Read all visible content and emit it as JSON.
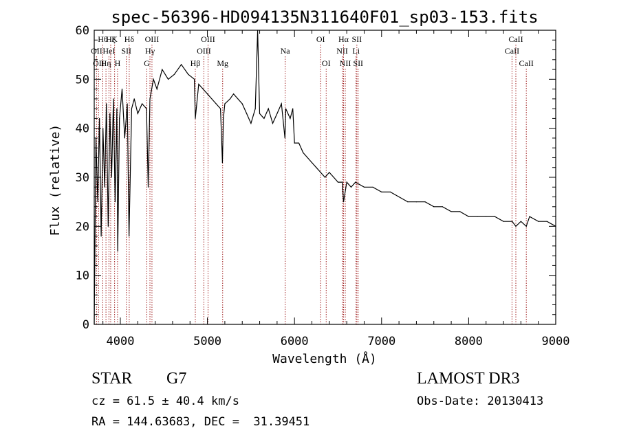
{
  "chart_data": {
    "type": "line",
    "title": "spec-56396-HD094135N311640F01_sp03-153.fits",
    "xlabel": "Wavelength (Å)",
    "ylabel": "Flux (relative)",
    "xlim": [
      3700,
      9000
    ],
    "ylim": [
      0,
      60
    ],
    "x_ticks": [
      4000,
      5000,
      6000,
      7000,
      8000,
      9000
    ],
    "x_tick_labels": [
      "4000",
      "5000",
      "6000",
      "7000",
      "8000",
      "9000"
    ],
    "y_ticks": [
      0,
      10,
      20,
      30,
      40,
      50,
      60
    ],
    "y_tick_labels": [
      "0",
      "10",
      "20",
      "30",
      "40",
      "50",
      "60"
    ],
    "series": [
      {
        "name": "flux",
        "color": "#000000",
        "x": [
          3700,
          3720,
          3740,
          3760,
          3780,
          3800,
          3820,
          3840,
          3860,
          3880,
          3900,
          3920,
          3940,
          3960,
          3970,
          3990,
          4020,
          4050,
          4080,
          4100,
          4130,
          4160,
          4200,
          4250,
          4300,
          4320,
          4340,
          4380,
          4420,
          4480,
          4550,
          4620,
          4700,
          4780,
          4850,
          4861,
          4900,
          4950,
          5000,
          5050,
          5100,
          5150,
          5172,
          5183,
          5200,
          5260,
          5300,
          5350,
          5400,
          5450,
          5500,
          5550,
          5577,
          5600,
          5650,
          5700,
          5750,
          5800,
          5850,
          5890,
          5900,
          5950,
          5980,
          6000,
          6050,
          6100,
          6150,
          6200,
          6250,
          6300,
          6350,
          6400,
          6450,
          6500,
          6550,
          6563,
          6600,
          6650,
          6700,
          6800,
          6900,
          7000,
          7100,
          7200,
          7300,
          7400,
          7500,
          7600,
          7700,
          7800,
          7900,
          8000,
          8100,
          8200,
          8300,
          8400,
          8500,
          8542,
          8600,
          8662,
          8700,
          8800,
          8900,
          9000
        ],
        "y": [
          0,
          38,
          25,
          42,
          18,
          40,
          28,
          45,
          20,
          43,
          30,
          46,
          25,
          44,
          15,
          42,
          48,
          38,
          45,
          18,
          44,
          46,
          43,
          45,
          44,
          28,
          46,
          50,
          48,
          52,
          50,
          51,
          53,
          51,
          50,
          42,
          49,
          48,
          47,
          46,
          45,
          44,
          33,
          42,
          45,
          46,
          47,
          46,
          45,
          43,
          41,
          44,
          60,
          43,
          42,
          44,
          41,
          43,
          45,
          38,
          44,
          42,
          44,
          37,
          37,
          35,
          34,
          33,
          32,
          31,
          30,
          31,
          30,
          29,
          29,
          25,
          29,
          28,
          29,
          28,
          28,
          27,
          27,
          26,
          25,
          25,
          25,
          24,
          24,
          23,
          23,
          22,
          22,
          22,
          22,
          21,
          21,
          20,
          21,
          20,
          22,
          21,
          21,
          20
        ]
      }
    ],
    "lines": [
      {
        "wl": 3727,
        "label": "OII",
        "row": 2
      },
      {
        "wl": 3750,
        "label": "OII",
        "row": 3
      },
      {
        "wl": 3798,
        "label": "Hθ",
        "row": 1
      },
      {
        "wl": 3835,
        "label": "Hη",
        "row": 3
      },
      {
        "wl": 3869,
        "label": "HeI",
        "row": 2
      },
      {
        "wl": 3889,
        "label": "Hζ",
        "row": 1
      },
      {
        "wl": 3934,
        "label": "K",
        "row": 1
      },
      {
        "wl": 3968,
        "label": "H",
        "row": 3
      },
      {
        "wl": 4069,
        "label": "SII",
        "row": 2
      },
      {
        "wl": 4102,
        "label": "Hδ",
        "row": 1
      },
      {
        "wl": 4304,
        "label": "G",
        "row": 3
      },
      {
        "wl": 4340,
        "label": "Hγ",
        "row": 2
      },
      {
        "wl": 4363,
        "label": "OIII",
        "row": 1
      },
      {
        "wl": 4861,
        "label": "Hβ",
        "row": 3
      },
      {
        "wl": 4959,
        "label": "OIII",
        "row": 2
      },
      {
        "wl": 5007,
        "label": "OIII",
        "row": 1
      },
      {
        "wl": 5175,
        "label": "Mg",
        "row": 3
      },
      {
        "wl": 5893,
        "label": "Na",
        "row": 2
      },
      {
        "wl": 6300,
        "label": "OI",
        "row": 1
      },
      {
        "wl": 6364,
        "label": "OI",
        "row": 3
      },
      {
        "wl": 6548,
        "label": "NII",
        "row": 2
      },
      {
        "wl": 6563,
        "label": "Hα",
        "row": 1
      },
      {
        "wl": 6583,
        "label": "NII",
        "row": 3
      },
      {
        "wl": 6707,
        "label": "Li",
        "row": 2
      },
      {
        "wl": 6716,
        "label": "SII",
        "row": 1
      },
      {
        "wl": 6731,
        "label": "SII",
        "row": 3
      },
      {
        "wl": 8498,
        "label": "CaII",
        "row": 2
      },
      {
        "wl": 8542,
        "label": "CaII",
        "row": 1
      },
      {
        "wl": 8662,
        "label": "CaII",
        "row": 3
      }
    ],
    "line_color": "#a02020",
    "grid": false,
    "legend": "none"
  },
  "info": {
    "class_label": "STAR",
    "subclass": "G7",
    "redshift": "cz = 61.5 ± 40.4 km/s",
    "coords": "RA = 144.63683, DEC =  31.39451",
    "survey": "LAMOST DR3",
    "obs_date": "Obs-Date: 20130413"
  }
}
